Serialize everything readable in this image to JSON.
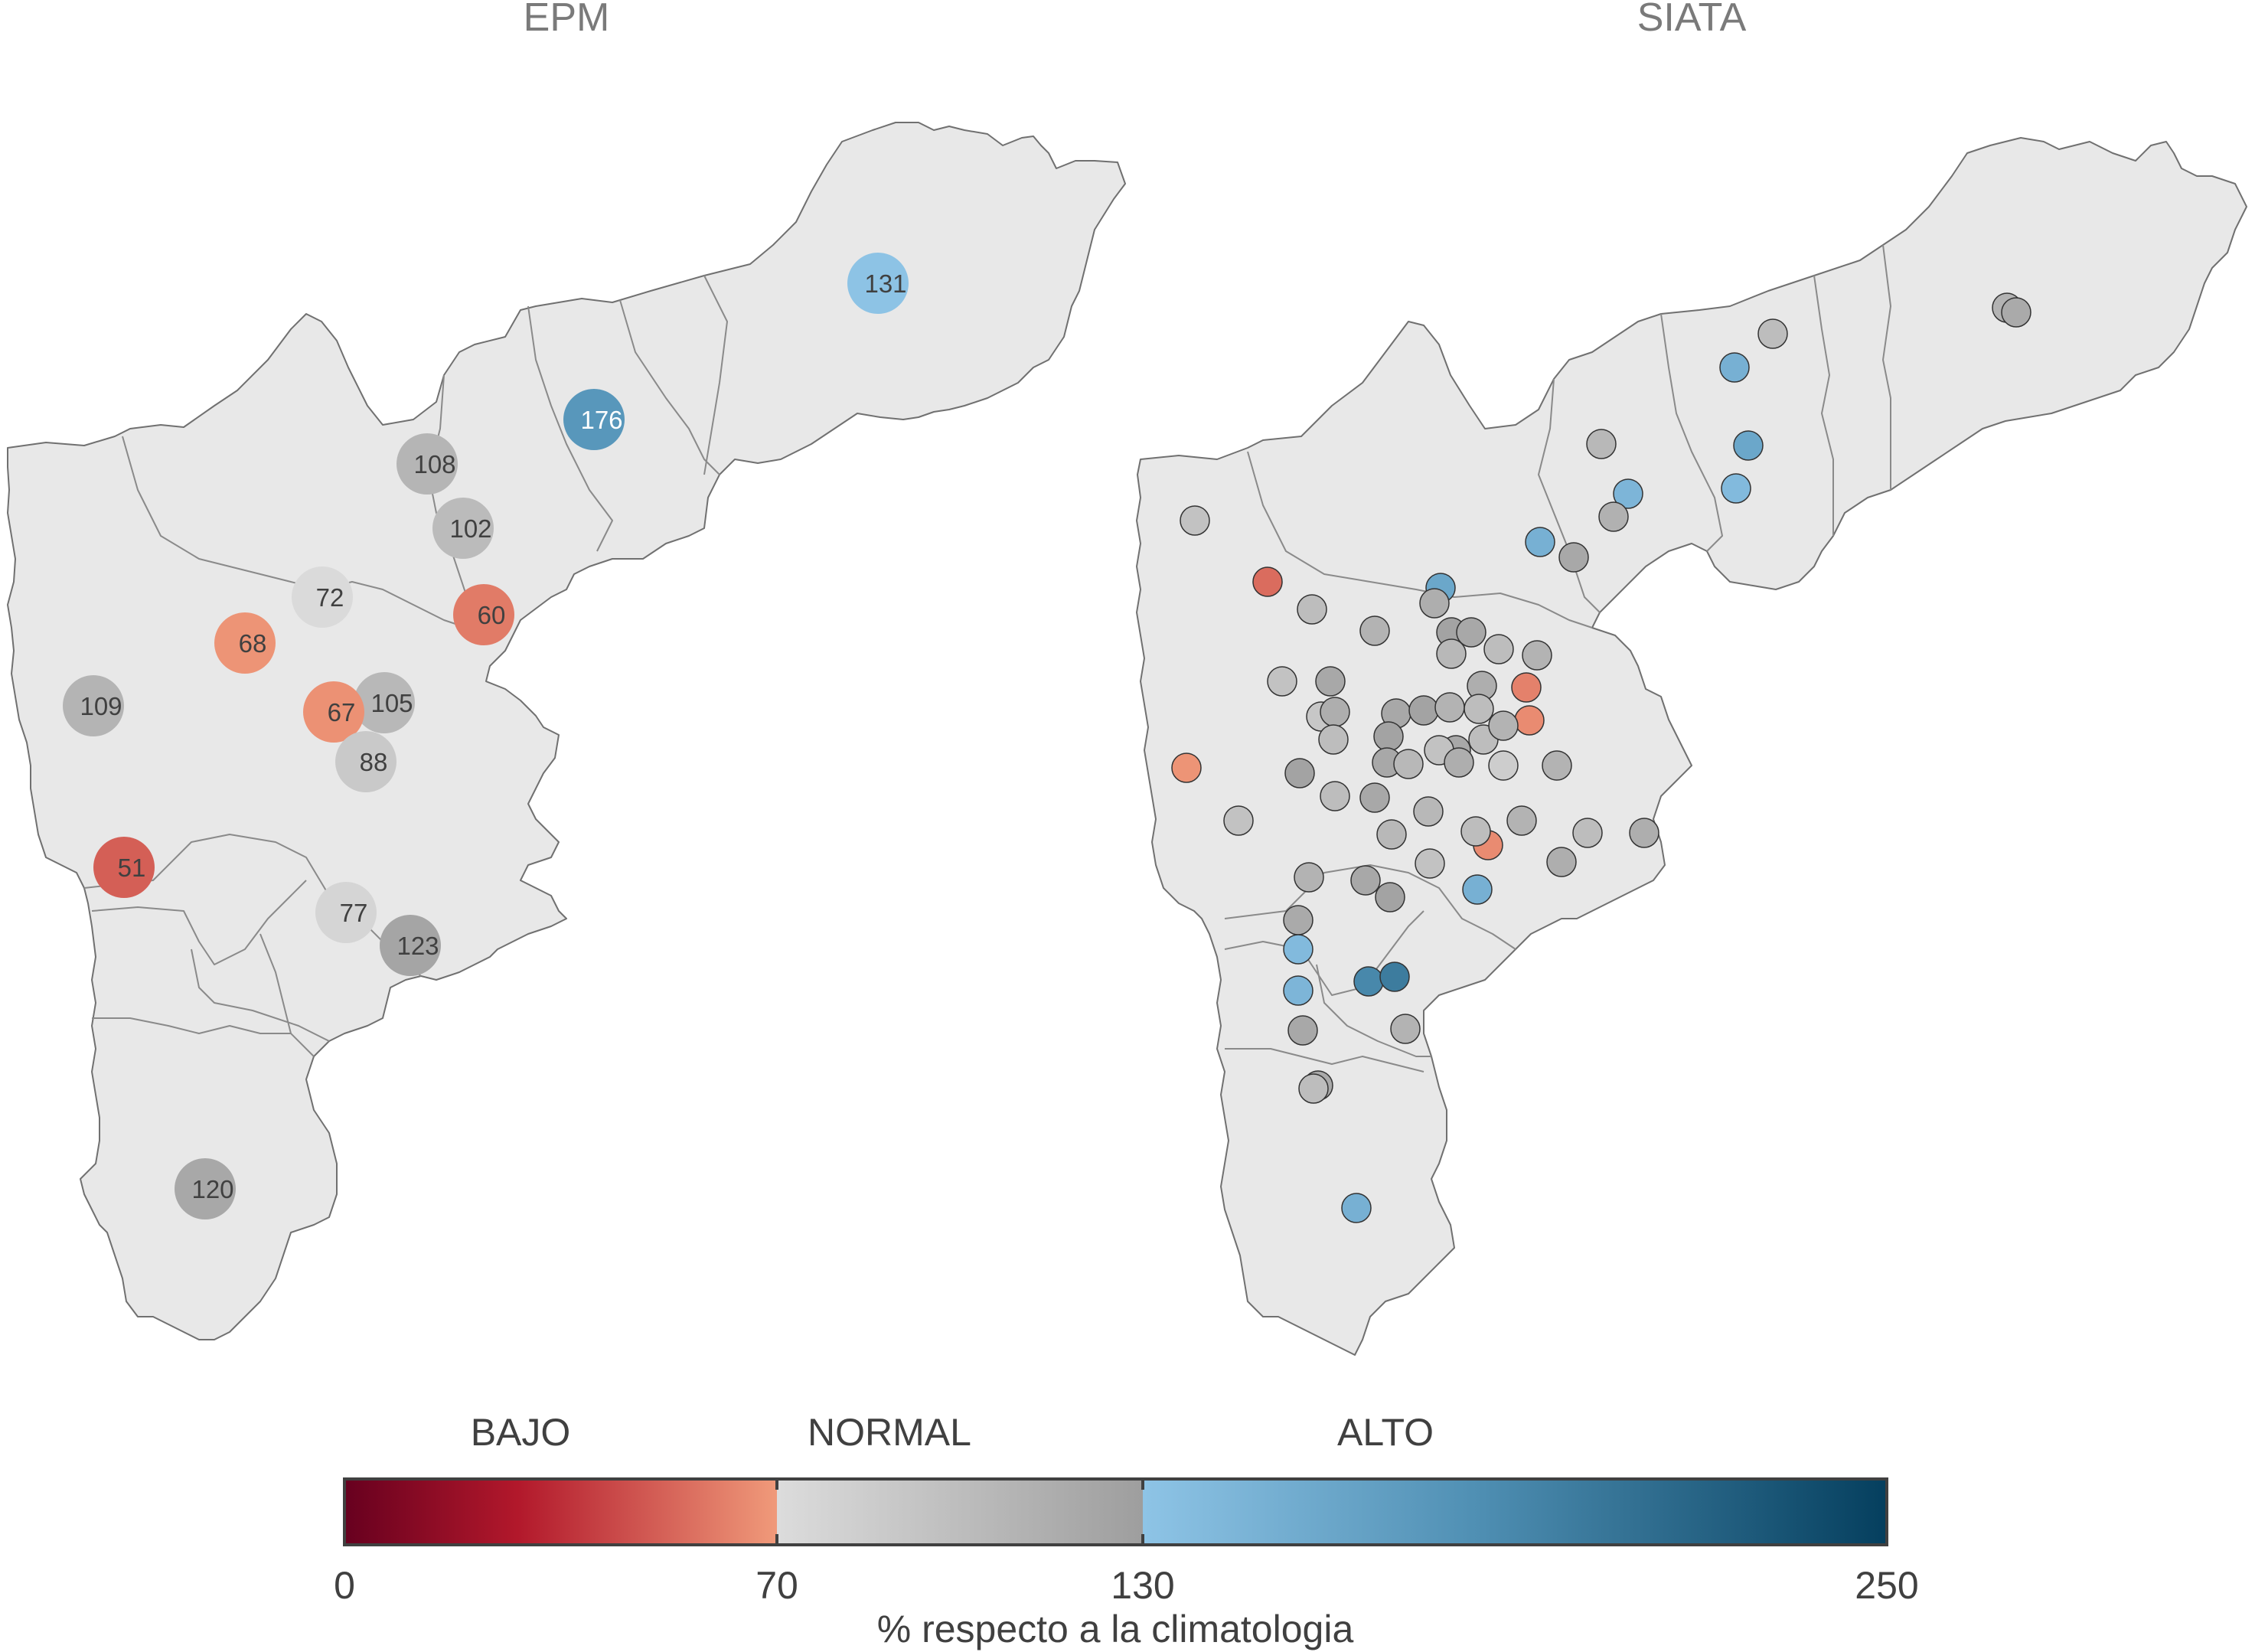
{
  "maps": {
    "left_title": "EPM",
    "right_title": "SIATA"
  },
  "colors": {
    "region_fill": "#e8e8e8",
    "region_stroke": "#707070",
    "bajo_start": "#67001f",
    "bajo_mid": "#b2182b",
    "bajo_end": "#f09a7a",
    "normal_start": "#dcdcdc",
    "normal_end": "#9e9e9e",
    "alto_start": "#8ec4e6",
    "alto_end": "#053f5e"
  },
  "epm_stations": [
    {
      "label": "131",
      "value": 131
    },
    {
      "label": "176",
      "value": 176
    },
    {
      "label": "108",
      "value": 108
    },
    {
      "label": "102",
      "value": 102
    },
    {
      "label": "72",
      "value": 72
    },
    {
      "label": "60",
      "value": 60
    },
    {
      "label": "68",
      "value": 68
    },
    {
      "label": "109",
      "value": 109
    },
    {
      "label": "105",
      "value": 105
    },
    {
      "label": "67",
      "value": 67
    },
    {
      "label": "88",
      "value": 88
    },
    {
      "label": "51",
      "value": 51
    },
    {
      "label": "77",
      "value": 77
    },
    {
      "label": "123",
      "value": 123
    },
    {
      "label": "120",
      "value": 120
    }
  ],
  "siata_stations": {
    "values": [
      110,
      118,
      100,
      150,
      160,
      140,
      145,
      112,
      105,
      150,
      120,
      55,
      100,
      160,
      115,
      125,
      110,
      120,
      95,
      62,
      65,
      68,
      95,
      120,
      105,
      100,
      110,
      90,
      115,
      120,
      125,
      110,
      115,
      100,
      120,
      95,
      100,
      110,
      125,
      100,
      120,
      105,
      115,
      85,
      110,
      125,
      120,
      100,
      105,
      95,
      65,
      100,
      110,
      100,
      115,
      105,
      95,
      110,
      120,
      115,
      125,
      150,
      118,
      140,
      145,
      190,
      200,
      120
    ]
  },
  "legend": {
    "categories": [
      "BAJO",
      "NORMAL",
      "ALTO"
    ],
    "ticks": [
      "0",
      "70",
      "130",
      "250"
    ],
    "tick_values": [
      0,
      70,
      130,
      250
    ],
    "title": "% respecto a la climatologia"
  }
}
